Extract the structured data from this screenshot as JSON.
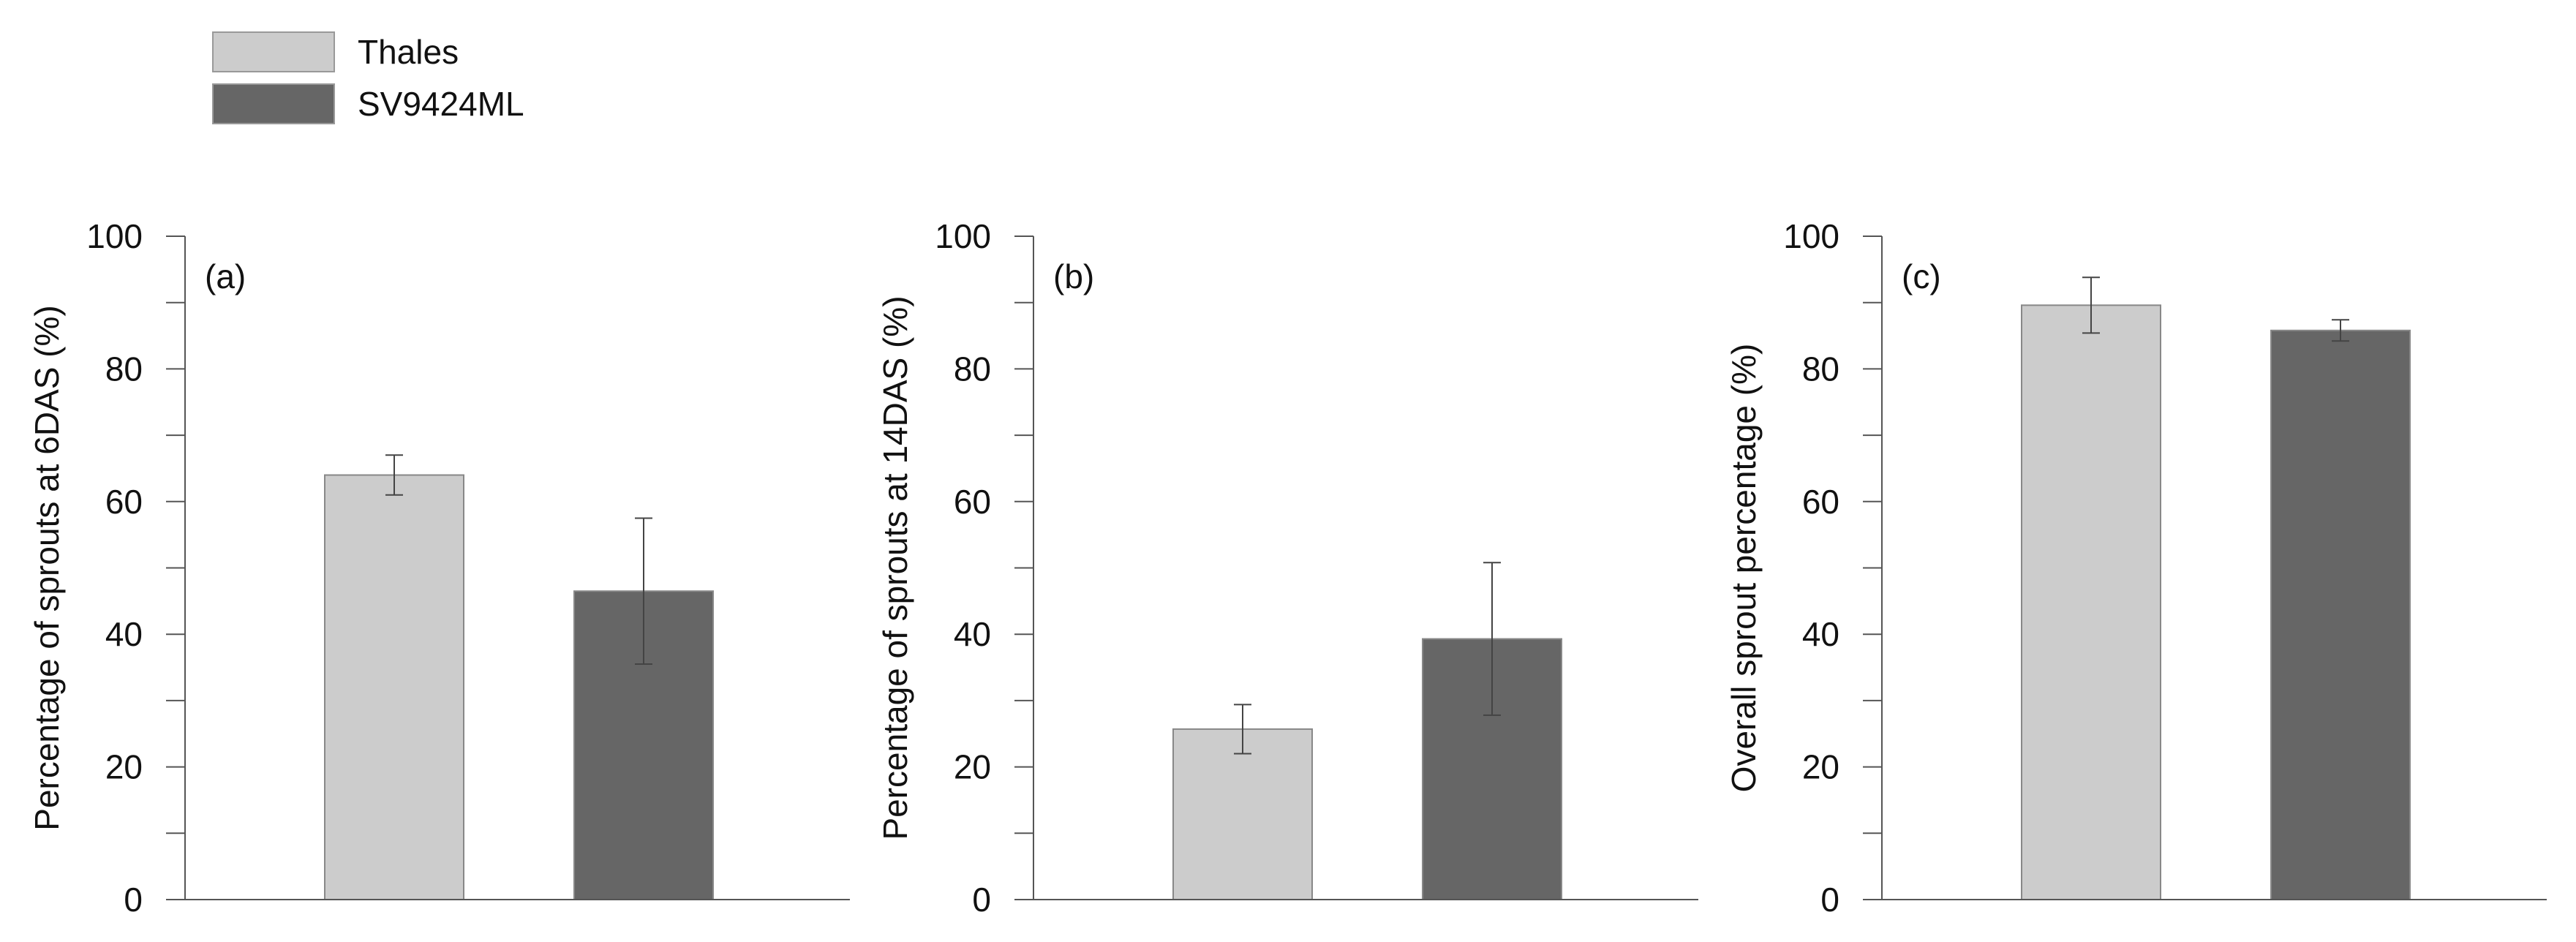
{
  "legend": [
    {
      "label": "Thales",
      "color": "#cccccc"
    },
    {
      "label": "SV9424ML",
      "color": "#666666"
    }
  ],
  "chart_data": [
    {
      "type": "bar",
      "panel_label": "(a)",
      "ylabel": "Percentage of sprouts at 6DAS (%)",
      "ylim": [
        0,
        100
      ],
      "yticks": [
        0,
        20,
        40,
        60,
        80,
        100
      ],
      "grid": false,
      "series": [
        {
          "name": "Thales",
          "value": 64,
          "error": 3,
          "color": "#cccccc"
        },
        {
          "name": "SV9424ML",
          "value": 46.5,
          "error": 11,
          "color": "#666666"
        }
      ]
    },
    {
      "type": "bar",
      "panel_label": "(b)",
      "ylabel": "Percentage of sprouts at 14DAS (%)",
      "ylim": [
        0,
        100
      ],
      "yticks": [
        0,
        20,
        40,
        60,
        80,
        100
      ],
      "grid": false,
      "series": [
        {
          "name": "Thales",
          "value": 25.7,
          "error": 3.7,
          "color": "#cccccc"
        },
        {
          "name": "SV9424ML",
          "value": 39.3,
          "error": 11.5,
          "color": "#666666"
        }
      ]
    },
    {
      "type": "bar",
      "panel_label": "(c)",
      "ylabel": "Overall sprout percentage (%)",
      "ylim": [
        0,
        100
      ],
      "yticks": [
        0,
        20,
        40,
        60,
        80,
        100
      ],
      "grid": false,
      "series": [
        {
          "name": "Thales",
          "value": 89.6,
          "error": 4.2,
          "color": "#cccccc"
        },
        {
          "name": "SV9424ML",
          "value": 85.8,
          "error": 1.6,
          "color": "#666666"
        }
      ]
    }
  ]
}
